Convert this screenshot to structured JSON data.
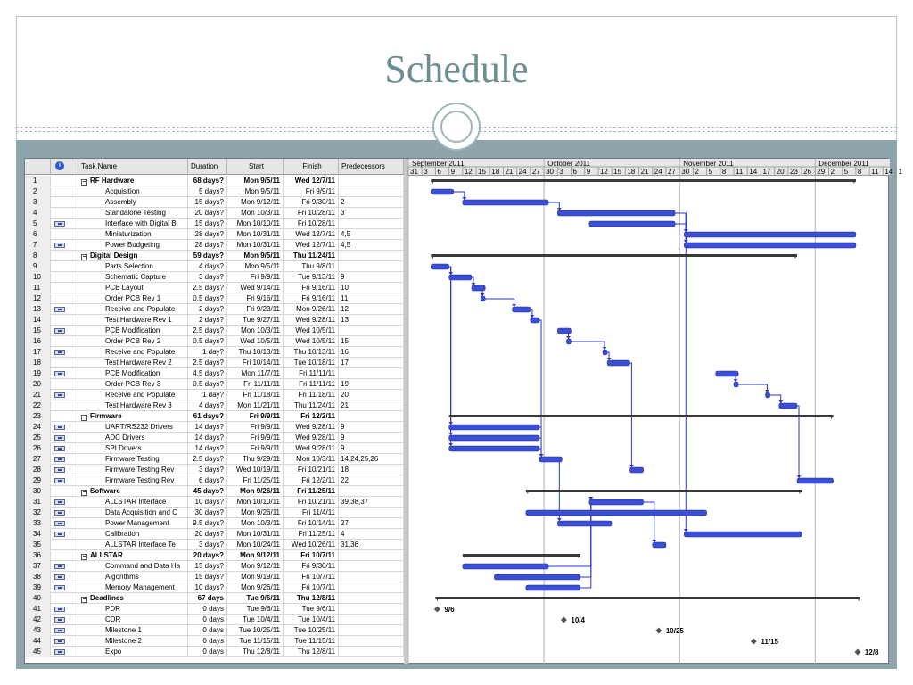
{
  "slide": {
    "title": "Schedule"
  },
  "columns": {
    "indicator_symbol": "i",
    "task_name": "Task Name",
    "duration": "Duration",
    "start": "Start",
    "finish": "Finish",
    "predecessors": "Predecessors"
  },
  "timescale": {
    "months": [
      {
        "label": "September 2011",
        "start": "2011-08-31"
      },
      {
        "label": "October 2011",
        "start": "2011-09-30"
      },
      {
        "label": "November 2011",
        "start": "2011-10-30"
      },
      {
        "label": "December 2011",
        "start": "2011-11-29"
      }
    ],
    "day_ticks": [
      "31",
      "3",
      "6",
      "9",
      "12",
      "15",
      "18",
      "21",
      "24",
      "27",
      "30",
      "3",
      "6",
      "9",
      "12",
      "15",
      "18",
      "21",
      "24",
      "27",
      "30",
      "2",
      "5",
      "8",
      "11",
      "14",
      "17",
      "20",
      "23",
      "26",
      "29",
      "2",
      "5",
      "8",
      "11",
      "14",
      "1"
    ]
  },
  "tasks": [
    {
      "id": "1",
      "indicator": false,
      "name": "RF Hardware",
      "summary": true,
      "duration": "68 days?",
      "start": "Mon 9/5/11",
      "finish": "Wed 12/7/11",
      "pred": ""
    },
    {
      "id": "2",
      "indicator": false,
      "name": "Acquisition",
      "summary": false,
      "duration": "5 days?",
      "start": "Mon 9/5/11",
      "finish": "Fri 9/9/11",
      "pred": ""
    },
    {
      "id": "3",
      "indicator": false,
      "name": "Assembly",
      "summary": false,
      "duration": "15 days?",
      "start": "Mon 9/12/11",
      "finish": "Fri 9/30/11",
      "pred": "2"
    },
    {
      "id": "4",
      "indicator": false,
      "name": "Standalone Testing",
      "summary": false,
      "duration": "20 days?",
      "start": "Mon 10/3/11",
      "finish": "Fri 10/28/11",
      "pred": "3"
    },
    {
      "id": "5",
      "indicator": true,
      "name": "Interface with Digital B",
      "summary": false,
      "duration": "15 days?",
      "start": "Mon 10/10/11",
      "finish": "Fri 10/28/11",
      "pred": ""
    },
    {
      "id": "6",
      "indicator": false,
      "name": "Miniaturization",
      "summary": false,
      "duration": "28 days?",
      "start": "Mon 10/31/11",
      "finish": "Wed 12/7/11",
      "pred": "4,5"
    },
    {
      "id": "7",
      "indicator": true,
      "name": "Power Budgeting",
      "summary": false,
      "duration": "28 days?",
      "start": "Mon 10/31/11",
      "finish": "Wed 12/7/11",
      "pred": "4,5"
    },
    {
      "id": "8",
      "indicator": false,
      "name": "Digital Design",
      "summary": true,
      "duration": "59 days?",
      "start": "Mon 9/5/11",
      "finish": "Thu 11/24/11",
      "pred": ""
    },
    {
      "id": "9",
      "indicator": false,
      "name": "Parts Selection",
      "summary": false,
      "duration": "4 days?",
      "start": "Mon 9/5/11",
      "finish": "Thu 9/8/11",
      "pred": ""
    },
    {
      "id": "10",
      "indicator": false,
      "name": "Schematic Capture",
      "summary": false,
      "duration": "3 days?",
      "start": "Fri 9/9/11",
      "finish": "Tue 9/13/11",
      "pred": "9"
    },
    {
      "id": "11",
      "indicator": false,
      "name": "PCB Layout",
      "summary": false,
      "duration": "2.5 days?",
      "start": "Wed 9/14/11",
      "finish": "Fri 9/16/11",
      "pred": "10"
    },
    {
      "id": "12",
      "indicator": false,
      "name": "Order PCB Rev 1",
      "summary": false,
      "duration": "0.5 days?",
      "start": "Fri 9/16/11",
      "finish": "Fri 9/16/11",
      "pred": "11"
    },
    {
      "id": "13",
      "indicator": true,
      "name": "Receive and Populate",
      "summary": false,
      "duration": "2 days?",
      "start": "Fri 9/23/11",
      "finish": "Mon 9/26/11",
      "pred": "12"
    },
    {
      "id": "14",
      "indicator": false,
      "name": "Test Hardware Rev 1",
      "summary": false,
      "duration": "2 days?",
      "start": "Tue 9/27/11",
      "finish": "Wed 9/28/11",
      "pred": "13"
    },
    {
      "id": "15",
      "indicator": true,
      "name": "PCB Modification",
      "summary": false,
      "duration": "2.5 days?",
      "start": "Mon 10/3/11",
      "finish": "Wed 10/5/11",
      "pred": ""
    },
    {
      "id": "16",
      "indicator": false,
      "name": "Order PCB Rev 2",
      "summary": false,
      "duration": "0.5 days?",
      "start": "Wed 10/5/11",
      "finish": "Wed 10/5/11",
      "pred": "15"
    },
    {
      "id": "17",
      "indicator": true,
      "name": "Receive and Populate",
      "summary": false,
      "duration": "1 day?",
      "start": "Thu 10/13/11",
      "finish": "Thu 10/13/11",
      "pred": "16"
    },
    {
      "id": "18",
      "indicator": false,
      "name": "Test Hardware Rev 2",
      "summary": false,
      "duration": "2.5 days?",
      "start": "Fri 10/14/11",
      "finish": "Tue 10/18/11",
      "pred": "17"
    },
    {
      "id": "19",
      "indicator": true,
      "name": "PCB Modification",
      "summary": false,
      "duration": "4.5 days?",
      "start": "Mon 11/7/11",
      "finish": "Fri 11/11/11",
      "pred": ""
    },
    {
      "id": "20",
      "indicator": false,
      "name": "Order PCB Rev 3",
      "summary": false,
      "duration": "0.5 days?",
      "start": "Fri 11/11/11",
      "finish": "Fri 11/11/11",
      "pred": "19"
    },
    {
      "id": "21",
      "indicator": true,
      "name": "Receive and Populate",
      "summary": false,
      "duration": "1 day?",
      "start": "Fri 11/18/11",
      "finish": "Fri 11/18/11",
      "pred": "20"
    },
    {
      "id": "22",
      "indicator": false,
      "name": "Test Hardware Rev 3",
      "summary": false,
      "duration": "4 days?",
      "start": "Mon 11/21/11",
      "finish": "Thu 11/24/11",
      "pred": "21"
    },
    {
      "id": "23",
      "indicator": false,
      "name": "Firmware",
      "summary": true,
      "duration": "61 days?",
      "start": "Fri 9/9/11",
      "finish": "Fri 12/2/11",
      "pred": ""
    },
    {
      "id": "24",
      "indicator": true,
      "name": "UART/RS232 Drivers",
      "summary": false,
      "duration": "14 days?",
      "start": "Fri 9/9/11",
      "finish": "Wed 9/28/11",
      "pred": "9"
    },
    {
      "id": "25",
      "indicator": true,
      "name": "ADC Drivers",
      "summary": false,
      "duration": "14 days?",
      "start": "Fri 9/9/11",
      "finish": "Wed 9/28/11",
      "pred": "9"
    },
    {
      "id": "26",
      "indicator": true,
      "name": "SPI Drivers",
      "summary": false,
      "duration": "14 days?",
      "start": "Fri 9/9/11",
      "finish": "Wed 9/28/11",
      "pred": "9"
    },
    {
      "id": "27",
      "indicator": true,
      "name": "Firmware Testing",
      "summary": false,
      "duration": "2.5 days?",
      "start": "Thu 9/29/11",
      "finish": "Mon 10/3/11",
      "pred": "14,24,25,26"
    },
    {
      "id": "28",
      "indicator": true,
      "name": "Firmware Testing Rev",
      "summary": false,
      "duration": "3 days?",
      "start": "Wed 10/19/11",
      "finish": "Fri 10/21/11",
      "pred": "18"
    },
    {
      "id": "29",
      "indicator": true,
      "name": "Firmware Testing Rev",
      "summary": false,
      "duration": "6 days?",
      "start": "Fri 11/25/11",
      "finish": "Fri 12/2/11",
      "pred": "22"
    },
    {
      "id": "30",
      "indicator": false,
      "name": "Software",
      "summary": true,
      "duration": "45 days?",
      "start": "Mon 9/26/11",
      "finish": "Fri 11/25/11",
      "pred": ""
    },
    {
      "id": "31",
      "indicator": true,
      "name": "ALLSTAR Interface",
      "summary": false,
      "duration": "10 days?",
      "start": "Mon 10/10/11",
      "finish": "Fri 10/21/11",
      "pred": "39,38,37"
    },
    {
      "id": "32",
      "indicator": true,
      "name": "Data Acquisition and C",
      "summary": false,
      "duration": "30 days?",
      "start": "Mon 9/26/11",
      "finish": "Fri 11/4/11",
      "pred": ""
    },
    {
      "id": "33",
      "indicator": true,
      "name": "Power Management",
      "summary": false,
      "duration": "9.5 days?",
      "start": "Mon 10/3/11",
      "finish": "Fri 10/14/11",
      "pred": "27"
    },
    {
      "id": "34",
      "indicator": true,
      "name": "Calibration",
      "summary": false,
      "duration": "20 days?",
      "start": "Mon 10/31/11",
      "finish": "Fri 11/25/11",
      "pred": "4"
    },
    {
      "id": "35",
      "indicator": false,
      "name": "ALLSTAR Interface Te",
      "summary": false,
      "duration": "3 days?",
      "start": "Mon 10/24/11",
      "finish": "Wed 10/26/11",
      "pred": "31,36"
    },
    {
      "id": "36",
      "indicator": false,
      "name": "ALLSTAR",
      "summary": true,
      "duration": "20 days?",
      "start": "Mon 9/12/11",
      "finish": "Fri 10/7/11",
      "pred": ""
    },
    {
      "id": "37",
      "indicator": true,
      "name": "Command and Data Ha",
      "summary": false,
      "duration": "15 days?",
      "start": "Mon 9/12/11",
      "finish": "Fri 9/30/11",
      "pred": ""
    },
    {
      "id": "38",
      "indicator": true,
      "name": "Algorithms",
      "summary": false,
      "duration": "15 days?",
      "start": "Mon 9/19/11",
      "finish": "Fri 10/7/11",
      "pred": ""
    },
    {
      "id": "39",
      "indicator": true,
      "name": "Memory Management",
      "summary": false,
      "duration": "10 days?",
      "start": "Mon 9/26/11",
      "finish": "Fri 10/7/11",
      "pred": ""
    },
    {
      "id": "40",
      "indicator": false,
      "name": "Deadlines",
      "summary": true,
      "duration": "67 days",
      "start": "Tue 9/6/11",
      "finish": "Thu 12/8/11",
      "pred": ""
    },
    {
      "id": "41",
      "indicator": true,
      "name": "PDR",
      "summary": false,
      "duration": "0 days",
      "start": "Tue 9/6/11",
      "finish": "Tue 9/6/11",
      "pred": "",
      "milestone": true,
      "ms_label": "9/6"
    },
    {
      "id": "42",
      "indicator": true,
      "name": "CDR",
      "summary": false,
      "duration": "0 days",
      "start": "Tue 10/4/11",
      "finish": "Tue 10/4/11",
      "pred": "",
      "milestone": true,
      "ms_label": "10/4"
    },
    {
      "id": "43",
      "indicator": true,
      "name": "Milestone 1",
      "summary": false,
      "duration": "0 days",
      "start": "Tue 10/25/11",
      "finish": "Tue 10/25/11",
      "pred": "",
      "milestone": true,
      "ms_label": "10/25"
    },
    {
      "id": "44",
      "indicator": true,
      "name": "Milestone 2",
      "summary": false,
      "duration": "0 days",
      "start": "Tue 11/15/11",
      "finish": "Tue 11/15/11",
      "pred": "",
      "milestone": true,
      "ms_label": "11/15"
    },
    {
      "id": "45",
      "indicator": true,
      "name": "Expo",
      "summary": false,
      "duration": "0 days",
      "start": "Thu 12/8/11",
      "finish": "Thu 12/8/11",
      "pred": "",
      "milestone": true,
      "ms_label": "12/8"
    }
  ],
  "colors": {
    "task_bar": "#3b4fd4",
    "summary_bar": "#3a3a3a",
    "link_line": "#2a36c8",
    "milestone": "#555555"
  }
}
